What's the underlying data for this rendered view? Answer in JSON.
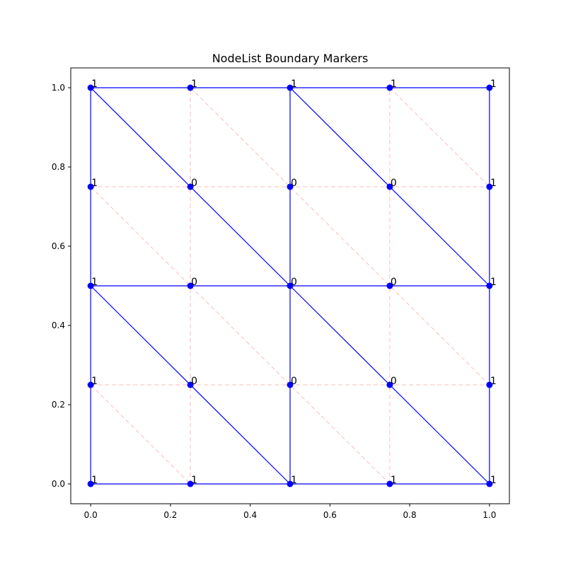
{
  "chart_data": {
    "type": "scatter",
    "title": "NodeList Boundary Markers",
    "xlabel": "",
    "ylabel": "",
    "xlim": [
      -0.05,
      1.05
    ],
    "ylim": [
      -0.05,
      1.05
    ],
    "xticks": [
      0.0,
      0.2,
      0.4,
      0.6,
      0.8,
      1.0
    ],
    "xtick_labels": [
      "0.0",
      "0.2",
      "0.4",
      "0.6",
      "0.8",
      "1.0"
    ],
    "yticks": [
      0.0,
      0.2,
      0.4,
      0.6,
      0.8,
      1.0
    ],
    "ytick_labels": [
      "0.0",
      "0.2",
      "0.4",
      "0.6",
      "0.8",
      "1.0"
    ],
    "grid": false,
    "colors": {
      "coarse_mesh": "#0000ff",
      "fine_mesh": "#ffbbbb",
      "nodes": "#0000ff"
    },
    "nodes": [
      {
        "x": 0.0,
        "y": 0.0,
        "marker": "1"
      },
      {
        "x": 0.25,
        "y": 0.0,
        "marker": "1"
      },
      {
        "x": 0.5,
        "y": 0.0,
        "marker": "1"
      },
      {
        "x": 0.75,
        "y": 0.0,
        "marker": "1"
      },
      {
        "x": 1.0,
        "y": 0.0,
        "marker": "1"
      },
      {
        "x": 0.0,
        "y": 0.25,
        "marker": "1"
      },
      {
        "x": 0.25,
        "y": 0.25,
        "marker": "0"
      },
      {
        "x": 0.5,
        "y": 0.25,
        "marker": "0"
      },
      {
        "x": 0.75,
        "y": 0.25,
        "marker": "0"
      },
      {
        "x": 1.0,
        "y": 0.25,
        "marker": "1"
      },
      {
        "x": 0.0,
        "y": 0.5,
        "marker": "1"
      },
      {
        "x": 0.25,
        "y": 0.5,
        "marker": "0"
      },
      {
        "x": 0.5,
        "y": 0.5,
        "marker": "0"
      },
      {
        "x": 0.75,
        "y": 0.5,
        "marker": "0"
      },
      {
        "x": 1.0,
        "y": 0.5,
        "marker": "1"
      },
      {
        "x": 0.0,
        "y": 0.75,
        "marker": "1"
      },
      {
        "x": 0.25,
        "y": 0.75,
        "marker": "0"
      },
      {
        "x": 0.5,
        "y": 0.75,
        "marker": "0"
      },
      {
        "x": 0.75,
        "y": 0.75,
        "marker": "0"
      },
      {
        "x": 1.0,
        "y": 0.75,
        "marker": "1"
      },
      {
        "x": 0.0,
        "y": 1.0,
        "marker": "1"
      },
      {
        "x": 0.25,
        "y": 1.0,
        "marker": "1"
      },
      {
        "x": 0.5,
        "y": 1.0,
        "marker": "1"
      },
      {
        "x": 0.75,
        "y": 1.0,
        "marker": "1"
      },
      {
        "x": 1.0,
        "y": 1.0,
        "marker": "1"
      }
    ],
    "coarse_edges": [
      [
        [
          0.0,
          0.0
        ],
        [
          1.0,
          0.0
        ]
      ],
      [
        [
          0.0,
          0.5
        ],
        [
          1.0,
          0.5
        ]
      ],
      [
        [
          0.0,
          1.0
        ],
        [
          1.0,
          1.0
        ]
      ],
      [
        [
          0.0,
          0.0
        ],
        [
          0.0,
          1.0
        ]
      ],
      [
        [
          0.5,
          0.0
        ],
        [
          0.5,
          1.0
        ]
      ],
      [
        [
          1.0,
          0.0
        ],
        [
          1.0,
          1.0
        ]
      ],
      [
        [
          0.0,
          0.5
        ],
        [
          0.5,
          0.0
        ]
      ],
      [
        [
          0.5,
          0.5
        ],
        [
          1.0,
          0.0
        ]
      ],
      [
        [
          0.0,
          1.0
        ],
        [
          0.5,
          0.5
        ]
      ],
      [
        [
          0.5,
          1.0
        ],
        [
          1.0,
          0.5
        ]
      ]
    ],
    "fine_edges": [
      [
        [
          0.0,
          0.25
        ],
        [
          1.0,
          0.25
        ]
      ],
      [
        [
          0.0,
          0.75
        ],
        [
          1.0,
          0.75
        ]
      ],
      [
        [
          0.25,
          0.0
        ],
        [
          0.25,
          1.0
        ]
      ],
      [
        [
          0.75,
          0.0
        ],
        [
          0.75,
          1.0
        ]
      ],
      [
        [
          0.0,
          0.25
        ],
        [
          0.25,
          0.0
        ]
      ],
      [
        [
          0.0,
          0.75
        ],
        [
          0.75,
          0.0
        ]
      ],
      [
        [
          0.25,
          1.0
        ],
        [
          1.0,
          0.25
        ]
      ],
      [
        [
          0.75,
          1.0
        ],
        [
          1.0,
          0.75
        ]
      ]
    ]
  }
}
